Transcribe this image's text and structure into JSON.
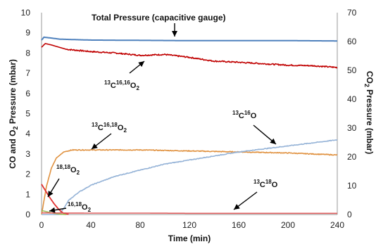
{
  "chart_data": {
    "type": "line",
    "xlabel": "Time (min)",
    "ylabel_left": [
      "CO and O",
      "2",
      " Pressure (mbar)"
    ],
    "ylabel_right": [
      "CO",
      "2",
      " Pressure (mbar)"
    ],
    "xlim": [
      0,
      240
    ],
    "ylim_left": [
      0,
      10
    ],
    "ylim_right": [
      0,
      70
    ],
    "x_ticks": [
      "0",
      "40",
      "80",
      "120",
      "160",
      "200",
      "240"
    ],
    "y_left_ticks": [
      "0",
      "1",
      "2",
      "3",
      "4",
      "5",
      "6",
      "7",
      "8",
      "9",
      "10"
    ],
    "y_right_ticks": [
      "0",
      "10",
      "20",
      "30",
      "40",
      "50",
      "60",
      "70"
    ],
    "grid": false,
    "legend": "none",
    "series": [
      {
        "key": "total",
        "axis": "right",
        "color": "#4f81bd",
        "points": [
          [
            0,
            60.5
          ],
          [
            2,
            61.5
          ],
          [
            6,
            61.3
          ],
          [
            15,
            60.8
          ],
          [
            40,
            60.5
          ],
          [
            80,
            60.4
          ],
          [
            120,
            60.3
          ],
          [
            160,
            60.3
          ],
          [
            200,
            60.3
          ],
          [
            240,
            60.2
          ]
        ]
      },
      {
        "key": "c1616o2",
        "axis": "right",
        "color": "#c00000",
        "points": [
          [
            0,
            58.0
          ],
          [
            3,
            59.3
          ],
          [
            8,
            58.8
          ],
          [
            20,
            57.3
          ],
          [
            40,
            56.5
          ],
          [
            60,
            56.0
          ],
          [
            80,
            55.2
          ],
          [
            100,
            55.5
          ],
          [
            120,
            54.5
          ],
          [
            140,
            53.2
          ],
          [
            160,
            52.8
          ],
          [
            180,
            52.3
          ],
          [
            200,
            51.8
          ],
          [
            220,
            51.6
          ],
          [
            240,
            51.0
          ]
        ]
      },
      {
        "key": "c1618o2",
        "axis": "left",
        "color": "#e0913f",
        "points": [
          [
            0,
            0
          ],
          [
            4,
            1.4
          ],
          [
            8,
            2.3
          ],
          [
            12,
            2.8
          ],
          [
            18,
            3.1
          ],
          [
            25,
            3.2
          ],
          [
            40,
            3.2
          ],
          [
            80,
            3.2
          ],
          [
            120,
            3.15
          ],
          [
            160,
            3.1
          ],
          [
            200,
            3.05
          ],
          [
            240,
            2.95
          ]
        ]
      },
      {
        "key": "c16o",
        "axis": "left",
        "color": "#95b3d7",
        "points": [
          [
            0,
            0
          ],
          [
            14,
            0
          ],
          [
            18,
            0.3
          ],
          [
            22,
            0.7
          ],
          [
            30,
            1.1
          ],
          [
            40,
            1.45
          ],
          [
            60,
            1.9
          ],
          [
            80,
            2.2
          ],
          [
            100,
            2.5
          ],
          [
            120,
            2.7
          ],
          [
            140,
            2.9
          ],
          [
            160,
            3.1
          ],
          [
            180,
            3.25
          ],
          [
            200,
            3.4
          ],
          [
            220,
            3.55
          ],
          [
            240,
            3.7
          ]
        ]
      },
      {
        "key": "o1818",
        "axis": "left",
        "color": "#e03030",
        "points": [
          [
            0,
            1.5
          ],
          [
            3,
            1.2
          ],
          [
            6,
            0.9
          ],
          [
            10,
            0.55
          ],
          [
            14,
            0.25
          ],
          [
            18,
            0.05
          ],
          [
            22,
            0.02
          ]
        ]
      },
      {
        "key": "o1618",
        "axis": "left",
        "color": "#9bbb59",
        "points": [
          [
            0,
            0.2
          ],
          [
            5,
            0.13
          ],
          [
            10,
            0.06
          ],
          [
            15,
            0.02
          ],
          [
            20,
            0.0
          ]
        ]
      },
      {
        "key": "c18o",
        "axis": "left",
        "color": "#e06060",
        "points": [
          [
            0,
            0.08
          ],
          [
            40,
            0.07
          ],
          [
            80,
            0.07
          ],
          [
            120,
            0.06
          ],
          [
            160,
            0.06
          ],
          [
            200,
            0.06
          ],
          [
            240,
            0.06
          ]
        ]
      }
    ],
    "annotations": {
      "total_label": "Total Pressure (capacitive gauge)",
      "c1616o2": {
        "pre": "13",
        "base1": "C",
        "sup": "16,16",
        "base2": "O",
        "sub": "2"
      },
      "c1618o2": {
        "pre": "13",
        "base1": "C",
        "sup": "16,18",
        "base2": "O",
        "sub": "2"
      },
      "c16o": {
        "pre": "13",
        "base1": "C",
        "sup": "16",
        "base2": "O"
      },
      "c18o": {
        "pre": "13",
        "base1": "C",
        "sup": "18",
        "base2": "O"
      },
      "o1818": {
        "pre": "18,18",
        "base1": "O",
        "sub": "2"
      },
      "o1618": {
        "pre": "16,18",
        "base1": "O",
        "sub": "2"
      }
    }
  }
}
